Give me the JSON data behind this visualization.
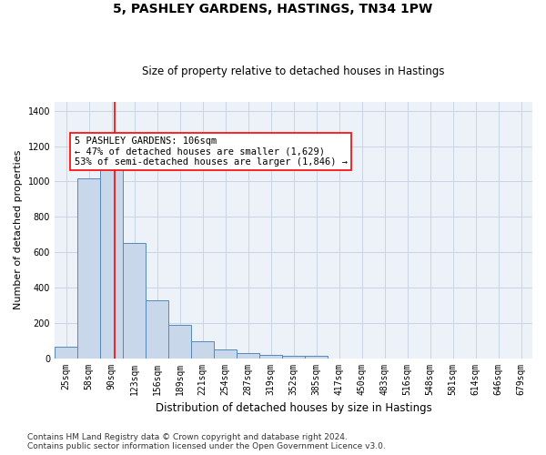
{
  "title_line1": "5, PASHLEY GARDENS, HASTINGS, TN34 1PW",
  "title_line2": "Size of property relative to detached houses in Hastings",
  "xlabel": "Distribution of detached houses by size in Hastings",
  "ylabel": "Number of detached properties",
  "footnote": "Contains HM Land Registry data © Crown copyright and database right 2024.\nContains public sector information licensed under the Open Government Licence v3.0.",
  "categories": [
    "25sqm",
    "58sqm",
    "90sqm",
    "123sqm",
    "156sqm",
    "189sqm",
    "221sqm",
    "254sqm",
    "287sqm",
    "319sqm",
    "352sqm",
    "385sqm",
    "417sqm",
    "450sqm",
    "483sqm",
    "516sqm",
    "548sqm",
    "581sqm",
    "614sqm",
    "646sqm",
    "679sqm"
  ],
  "values": [
    65,
    1020,
    1100,
    650,
    325,
    190,
    95,
    50,
    30,
    20,
    15,
    13,
    0,
    0,
    0,
    0,
    0,
    0,
    0,
    0,
    0
  ],
  "bar_color": "#c8d8ea",
  "bar_edge_color": "#5588bb",
  "bar_linewidth": 0.7,
  "grid_color": "#c8d4e4",
  "bg_color": "#edf1f8",
  "red_line_x": 2.12,
  "annotation_text": "5 PASHLEY GARDENS: 106sqm\n← 47% of detached houses are smaller (1,629)\n53% of semi-detached houses are larger (1,846) →",
  "ylim": [
    0,
    1450
  ],
  "yticks": [
    0,
    200,
    400,
    600,
    800,
    1000,
    1200,
    1400
  ],
  "title_fontsize": 10,
  "subtitle_fontsize": 8.5,
  "ylabel_fontsize": 8,
  "xlabel_fontsize": 8.5,
  "tick_fontsize": 7,
  "annotation_fontsize": 7.5,
  "footnote_fontsize": 6.5
}
